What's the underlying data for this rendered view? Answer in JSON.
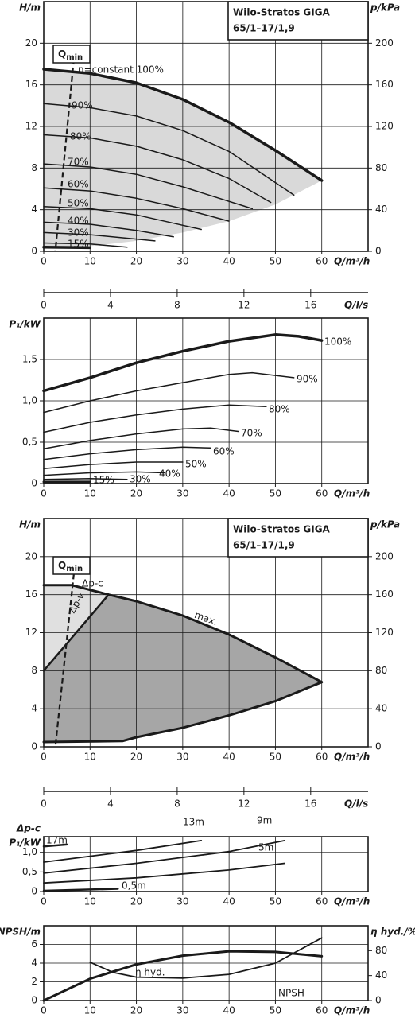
{
  "chart_data": [
    {
      "type": "line",
      "title": [
        "Wilo-Stratos GIGA",
        "65/1–17/1,9"
      ],
      "ylabel": "H/m",
      "y2label": "p/kPa",
      "xlabel": "Q/m³/h",
      "xlim": [
        0,
        70
      ],
      "ylim": [
        0,
        24
      ],
      "y2lim": [
        0,
        240
      ],
      "xticks": [
        0,
        10,
        20,
        30,
        40,
        50,
        60
      ],
      "yticks": [
        0,
        4,
        8,
        12,
        16,
        20
      ],
      "y2ticks": [
        0,
        40,
        80,
        120,
        160,
        200
      ],
      "grid": true,
      "qmin": {
        "text": "Q",
        "sub": "min",
        "x": [
          6.5,
          2.5
        ],
        "values": [
          18.5,
          0
        ]
      },
      "regions": [
        {
          "fill": "#d9d9d9",
          "x": [
            0,
            10,
            20,
            30,
            40,
            50,
            60,
            50,
            40,
            30,
            20,
            10,
            0
          ],
          "values": [
            17.5,
            17.1,
            16.2,
            14.6,
            12.4,
            9.7,
            6.8,
            4.5,
            2.9,
            1.8,
            1.0,
            0.5,
            0.3
          ]
        }
      ],
      "series": [
        {
          "name": "n=constant 100%",
          "color": "#1a1a1a",
          "width": 3.5,
          "x": [
            0,
            10,
            20,
            30,
            40,
            50,
            60
          ],
          "values": [
            17.5,
            17.1,
            16.2,
            14.6,
            12.4,
            9.7,
            6.8
          ]
        },
        {
          "name": "90%",
          "color": "#1a1a1a",
          "width": 1.5,
          "x": [
            0,
            10,
            20,
            30,
            40,
            54
          ],
          "values": [
            14.2,
            13.8,
            13.0,
            11.6,
            9.6,
            5.4
          ]
        },
        {
          "name": "80%",
          "color": "#1a1a1a",
          "width": 1.5,
          "x": [
            0,
            10,
            20,
            30,
            40,
            49
          ],
          "values": [
            11.2,
            10.9,
            10.1,
            8.8,
            7.0,
            4.7
          ]
        },
        {
          "name": "70%",
          "color": "#1a1a1a",
          "width": 1.5,
          "x": [
            0,
            10,
            20,
            30,
            45
          ],
          "values": [
            8.4,
            8.1,
            7.4,
            6.2,
            4.1
          ]
        },
        {
          "name": "60%",
          "color": "#1a1a1a",
          "width": 1.5,
          "x": [
            0,
            10,
            20,
            30,
            40
          ],
          "values": [
            6.1,
            5.8,
            5.1,
            4.1,
            2.9
          ]
        },
        {
          "name": "50%",
          "color": "#1a1a1a",
          "width": 1.5,
          "x": [
            0,
            10,
            20,
            30,
            34
          ],
          "values": [
            4.3,
            4.1,
            3.5,
            2.5,
            2.1
          ]
        },
        {
          "name": "40%",
          "color": "#1a1a1a",
          "width": 1.5,
          "x": [
            0,
            10,
            20,
            28
          ],
          "values": [
            2.8,
            2.6,
            2.0,
            1.4
          ]
        },
        {
          "name": "30%",
          "color": "#1a1a1a",
          "width": 1.5,
          "x": [
            0,
            10,
            24
          ],
          "values": [
            1.8,
            1.6,
            1.0
          ]
        },
        {
          "name": "15%",
          "color": "#1a1a1a",
          "width": 1.5,
          "x": [
            0,
            10,
            18
          ],
          "values": [
            0.8,
            0.7,
            0.4
          ]
        },
        {
          "color": "#1a1a1a",
          "width": 3.5,
          "x": [
            0,
            10
          ],
          "values": [
            0.4,
            0.35
          ]
        }
      ]
    },
    {
      "type": "axis",
      "xlabel": "Q/l/s",
      "xlim": [
        0,
        19.44
      ],
      "xticks": [
        0,
        4,
        8,
        12,
        16
      ]
    },
    {
      "type": "line",
      "ylabel": "P₁/kW",
      "xlabel": "Q/m³/h",
      "xlim": [
        0,
        70
      ],
      "ylim": [
        0,
        2
      ],
      "xticks": [
        0,
        10,
        20,
        30,
        40,
        50,
        60
      ],
      "yticks": [
        0,
        {
          "value": 0.5,
          "label": "0,5"
        },
        {
          "value": 1,
          "label": "1,0"
        },
        {
          "value": 1.5,
          "label": "1,5"
        }
      ],
      "grid": true,
      "series": [
        {
          "name": "100%",
          "color": "#1a1a1a",
          "width": 3.5,
          "x": [
            0,
            10,
            20,
            30,
            40,
            50,
            55,
            60
          ],
          "values": [
            1.12,
            1.28,
            1.46,
            1.6,
            1.72,
            1.8,
            1.78,
            1.73
          ]
        },
        {
          "name": "90%",
          "color": "#1a1a1a",
          "width": 1.5,
          "x": [
            0,
            10,
            20,
            30,
            40,
            45,
            54
          ],
          "values": [
            0.86,
            1.0,
            1.12,
            1.22,
            1.32,
            1.34,
            1.28
          ]
        },
        {
          "name": "80%",
          "color": "#1a1a1a",
          "width": 1.5,
          "x": [
            0,
            10,
            20,
            30,
            40,
            48
          ],
          "values": [
            0.62,
            0.74,
            0.83,
            0.9,
            0.95,
            0.93
          ]
        },
        {
          "name": "70%",
          "color": "#1a1a1a",
          "width": 1.5,
          "x": [
            0,
            10,
            20,
            30,
            36,
            42
          ],
          "values": [
            0.42,
            0.52,
            0.6,
            0.66,
            0.67,
            0.63
          ]
        },
        {
          "name": "60%",
          "color": "#1a1a1a",
          "width": 1.5,
          "x": [
            0,
            10,
            20,
            30,
            36
          ],
          "values": [
            0.29,
            0.36,
            0.41,
            0.44,
            0.43
          ]
        },
        {
          "name": "50%",
          "color": "#1a1a1a",
          "width": 1.5,
          "x": [
            0,
            10,
            20,
            30
          ],
          "values": [
            0.18,
            0.23,
            0.26,
            0.26
          ]
        },
        {
          "name": "40%",
          "color": "#1a1a1a",
          "width": 1.5,
          "x": [
            0,
            10,
            20,
            26
          ],
          "values": [
            0.1,
            0.13,
            0.14,
            0.13
          ]
        },
        {
          "name": "30%",
          "color": "#1a1a1a",
          "width": 1.5,
          "x": [
            0,
            10,
            18
          ],
          "values": [
            0.05,
            0.06,
            0.05
          ]
        },
        {
          "name": "15%",
          "color": "#1a1a1a",
          "width": 3,
          "x": [
            0,
            10
          ],
          "values": [
            0.02,
            0.02
          ]
        }
      ]
    },
    {
      "type": "line",
      "title": [
        "Wilo-Stratos GIGA",
        "65/1–17/1,9"
      ],
      "ylabel": "H/m",
      "y2label": "p/kPa",
      "xlabel": "Q/m³/h",
      "xlim": [
        0,
        70
      ],
      "ylim": [
        0,
        24
      ],
      "y2lim": [
        0,
        240
      ],
      "xticks": [
        0,
        10,
        20,
        30,
        40,
        50,
        60
      ],
      "yticks": [
        0,
        4,
        8,
        12,
        16,
        20
      ],
      "y2ticks": [
        0,
        40,
        80,
        120,
        160,
        200
      ],
      "grid": true,
      "qmin": {
        "text": "Q",
        "sub": "min",
        "x": [
          6.5,
          2.5
        ],
        "values": [
          18.2,
          0
        ]
      },
      "regions": [
        {
          "fill": "#a6a6a6",
          "x": [
            0,
            14,
            20,
            30,
            40,
            50,
            60,
            50,
            40,
            30,
            20,
            17,
            0
          ],
          "values": [
            8,
            16,
            15.3,
            13.8,
            11.8,
            9.4,
            6.8,
            4.8,
            3.3,
            2.0,
            1.0,
            0.6,
            0.5
          ]
        },
        {
          "fill": "#e0e0e0",
          "x": [
            0,
            0,
            6,
            14
          ],
          "values": [
            8,
            17,
            17,
            16
          ]
        }
      ],
      "series": [
        {
          "name": "Δp-c",
          "color": "#1a1a1a",
          "width": 3,
          "x": [
            0,
            6,
            14
          ],
          "values": [
            17,
            17,
            16
          ]
        },
        {
          "name": "max.",
          "color": "#1a1a1a",
          "width": 3,
          "x": [
            14,
            20,
            30,
            40,
            50,
            60
          ],
          "values": [
            16,
            15.3,
            13.8,
            11.8,
            9.4,
            6.8
          ]
        },
        {
          "name": "Δp-v",
          "color": "#1a1a1a",
          "width": 2.5,
          "x": [
            0,
            14
          ],
          "values": [
            8,
            16
          ]
        },
        {
          "color": "#1a1a1a",
          "width": 3,
          "x": [
            0,
            17,
            20,
            30,
            40,
            50,
            60
          ],
          "values": [
            0.5,
            0.6,
            1.0,
            2.0,
            3.3,
            4.8,
            6.8
          ]
        }
      ]
    },
    {
      "type": "axis",
      "xlabel": "Q/l/s",
      "xlim": [
        0,
        19.44
      ],
      "xticks": [
        0,
        4,
        8,
        12,
        16
      ]
    },
    {
      "type": "line",
      "modelabel": "Δp-c",
      "ylabel": "P₁/kW",
      "xlabel": "Q/m³/h",
      "xlim": [
        0,
        70
      ],
      "ylim": [
        0,
        1.4
      ],
      "xticks": [
        0,
        10,
        20,
        30,
        40,
        50,
        60
      ],
      "yticks": [
        0,
        {
          "value": 0.5,
          "label": "0,5"
        },
        {
          "value": 1,
          "label": "1,0"
        }
      ],
      "grid": true,
      "series": [
        {
          "name": "17m",
          "color": "#1a1a1a",
          "width": 2.5,
          "x": [
            0,
            5
          ],
          "values": [
            1.15,
            1.2
          ]
        },
        {
          "name": "13m",
          "color": "#1a1a1a",
          "width": 1.8,
          "x": [
            0,
            10,
            20,
            34
          ],
          "values": [
            0.75,
            0.9,
            1.05,
            1.3
          ]
        },
        {
          "name": "9m",
          "color": "#1a1a1a",
          "width": 1.8,
          "x": [
            0,
            20,
            40,
            52
          ],
          "values": [
            0.47,
            0.72,
            1.02,
            1.3
          ]
        },
        {
          "name": "5m",
          "color": "#1a1a1a",
          "width": 1.8,
          "x": [
            0,
            20,
            40,
            52
          ],
          "values": [
            0.22,
            0.35,
            0.55,
            0.72
          ]
        },
        {
          "name": "0,5m",
          "color": "#1a1a1a",
          "width": 2.5,
          "x": [
            0,
            16
          ],
          "values": [
            0.02,
            0.07
          ]
        }
      ]
    },
    {
      "type": "line",
      "ylabel": "NPSH/m",
      "y2label": "η hyd./%",
      "xlabel": "Q/m³/h",
      "xlim": [
        0,
        70
      ],
      "ylim": [
        0,
        8
      ],
      "y2lim": [
        0,
        120
      ],
      "xticks": [
        0,
        10,
        20,
        30,
        40,
        50,
        60
      ],
      "yticks": [
        0,
        2,
        4,
        6
      ],
      "y2ticks": [
        0,
        40,
        80
      ],
      "grid": true,
      "series": [
        {
          "name": "η hyd.",
          "axis": "y2",
          "color": "#1a1a1a",
          "width": 3,
          "x": [
            0,
            10,
            20,
            30,
            40,
            50,
            60
          ],
          "values": [
            0,
            35,
            58,
            72,
            79,
            78,
            71
          ]
        },
        {
          "name": "NPSH",
          "color": "#1a1a1a",
          "width": 1.8,
          "x": [
            10,
            15,
            20,
            30,
            40,
            50,
            60
          ],
          "values": [
            4.1,
            3.0,
            2.5,
            2.4,
            2.8,
            4.0,
            6.7
          ]
        }
      ]
    }
  ]
}
